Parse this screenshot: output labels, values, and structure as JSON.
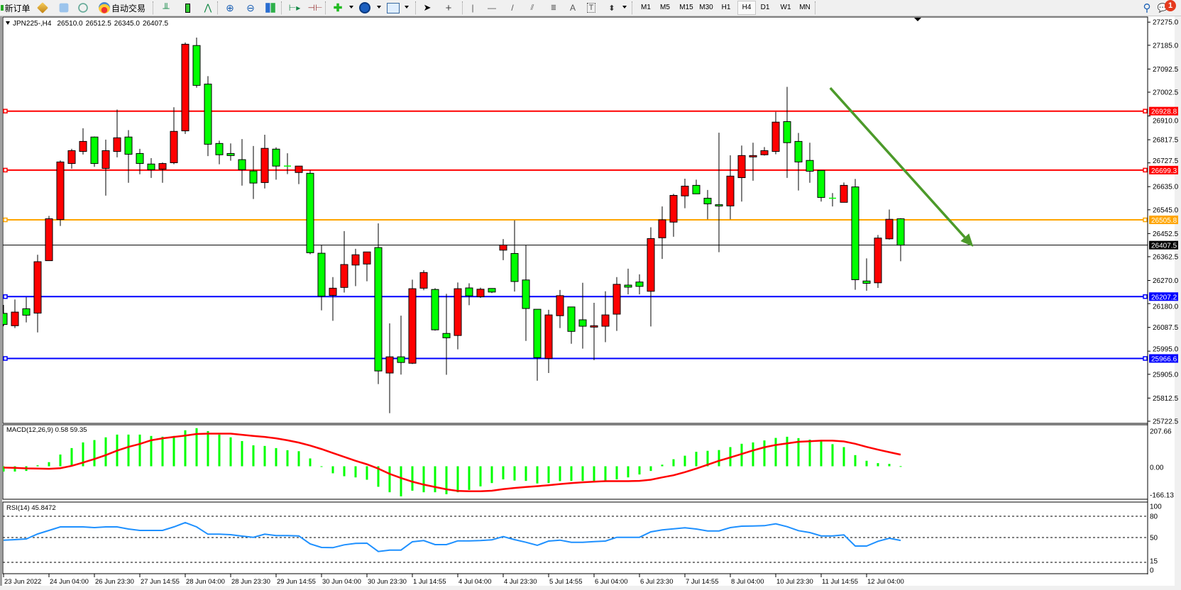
{
  "toolbar": {
    "new_order_label": "新订单",
    "auto_trading_label": "自动交易",
    "timeframes": [
      "M1",
      "M5",
      "M15",
      "M30",
      "H1",
      "H4",
      "D1",
      "W1",
      "MN"
    ],
    "active_timeframe": "H4",
    "notification_count": "1",
    "icons": [
      "new-order-icon",
      "market-watch-icon",
      "navigator-icon",
      "signals-icon",
      "auto-trading-icon",
      "bar-chart-icon",
      "candlestick-icon",
      "line-chart-icon",
      "zoom-in-icon",
      "zoom-out-icon",
      "tile-windows-icon",
      "auto-scroll-icon",
      "chart-shift-icon",
      "indicators-icon",
      "periods-icon",
      "templates-icon",
      "cursor-icon",
      "crosshair-icon",
      "vertical-line-icon",
      "horizontal-line-icon",
      "trendline-icon",
      "equidistant-channel-icon",
      "fibonacci-icon",
      "text-icon",
      "text-label-icon",
      "arrows-icon",
      "search-icon",
      "notification-icon"
    ]
  },
  "chart": {
    "symbol": "JPN225-,H4",
    "open": "26510.0",
    "high": "26512.5",
    "low": "26345.0",
    "close": "26407.5",
    "current_price": "26407.5",
    "colors": {
      "bull": "#ff0000",
      "bear": "#00ff00",
      "wick": "#000000",
      "current_line": "#000000",
      "arrow": "#4c9a2a"
    },
    "candles": [
      [
        26142,
        26175,
        26092,
        26099
      ],
      [
        26094,
        26196,
        26085,
        26147
      ],
      [
        26160,
        26205,
        26107,
        26135
      ],
      [
        26143,
        26370,
        26068,
        26343
      ],
      [
        26347,
        26521,
        26347,
        26510
      ],
      [
        26507,
        26737,
        26482,
        26731
      ],
      [
        26725,
        26782,
        26705,
        26775
      ],
      [
        26772,
        26862,
        26760,
        26811
      ],
      [
        26828,
        26830,
        26712,
        26725
      ],
      [
        26706,
        26818,
        26600,
        26775
      ],
      [
        26772,
        26935,
        26749,
        26825
      ],
      [
        26828,
        26855,
        26650,
        26761
      ],
      [
        26764,
        26782,
        26683,
        26725
      ],
      [
        26723,
        26746,
        26669,
        26701
      ],
      [
        26703,
        26729,
        26650,
        26725
      ],
      [
        26728,
        26944,
        26722,
        26850
      ],
      [
        26852,
        27196,
        26840,
        27189
      ],
      [
        27184,
        27215,
        27020,
        27029
      ],
      [
        27034,
        27065,
        26754,
        26800
      ],
      [
        26803,
        26814,
        26722,
        26759
      ],
      [
        26764,
        26803,
        26736,
        26756
      ],
      [
        26740,
        26820,
        26639,
        26701
      ],
      [
        26696,
        26793,
        26587,
        26649
      ],
      [
        26651,
        26837,
        26628,
        26784
      ],
      [
        26781,
        26788,
        26662,
        26715
      ],
      [
        26715,
        26765,
        26684,
        26715
      ],
      [
        26690,
        26715,
        26645,
        26715
      ],
      [
        26687,
        26699,
        26372,
        26378
      ],
      [
        26376,
        26409,
        26154,
        26209
      ],
      [
        26212,
        26283,
        26113,
        26240
      ],
      [
        26243,
        26462,
        26223,
        26332
      ],
      [
        26330,
        26393,
        26248,
        26370
      ],
      [
        26334,
        26381,
        26267,
        26381
      ],
      [
        26398,
        26492,
        25867,
        25918
      ],
      [
        25910,
        26103,
        25754,
        25973
      ],
      [
        25973,
        26133,
        25904,
        25951
      ],
      [
        25948,
        26273,
        25945,
        26238
      ],
      [
        26240,
        26310,
        26232,
        26301
      ],
      [
        26235,
        26240,
        26075,
        26078
      ],
      [
        26064,
        26218,
        25903,
        26047
      ],
      [
        26056,
        26262,
        26002,
        26238
      ],
      [
        26241,
        26259,
        26174,
        26210
      ],
      [
        26207,
        26242,
        26202,
        26236
      ],
      [
        26239,
        26239,
        26221,
        26225
      ],
      [
        26388,
        26431,
        26349,
        26408
      ],
      [
        26375,
        26504,
        26227,
        26266
      ],
      [
        26272,
        26408,
        26035,
        26161
      ],
      [
        26158,
        26158,
        25880,
        25970
      ],
      [
        25967,
        26156,
        25910,
        26136
      ],
      [
        26133,
        26233,
        26085,
        26211
      ],
      [
        26167,
        26167,
        26024,
        26072
      ],
      [
        26117,
        26261,
        26005,
        26092
      ],
      [
        26089,
        26183,
        25960,
        26094
      ],
      [
        26092,
        26228,
        26030,
        26136
      ],
      [
        26139,
        26283,
        26074,
        26255
      ],
      [
        26252,
        26316,
        26216,
        26244
      ],
      [
        26264,
        26294,
        26216,
        26247
      ],
      [
        26228,
        26477,
        26091,
        26433
      ],
      [
        26436,
        26558,
        26354,
        26506
      ],
      [
        26497,
        26607,
        26440,
        26601
      ],
      [
        26599,
        26666,
        26551,
        26637
      ],
      [
        26640,
        26662,
        26607,
        26607
      ],
      [
        26590,
        26622,
        26508,
        26568
      ],
      [
        26565,
        26845,
        26380,
        26560
      ],
      [
        26560,
        26757,
        26508,
        26676
      ],
      [
        26670,
        26795,
        26577,
        26756
      ],
      [
        26753,
        26806,
        26658,
        26756
      ],
      [
        26759,
        26789,
        26756,
        26775
      ],
      [
        26772,
        26926,
        26761,
        26886
      ],
      [
        26888,
        27023,
        26669,
        26806
      ],
      [
        26811,
        26844,
        26620,
        26731
      ],
      [
        26737,
        26806,
        26650,
        26695
      ],
      [
        26698,
        26698,
        26577,
        26593
      ],
      [
        26590,
        26610,
        26558,
        26590
      ],
      [
        26574,
        26651,
        26574,
        26640
      ],
      [
        26634,
        26665,
        26234,
        26273
      ],
      [
        26268,
        26356,
        26230,
        26259
      ],
      [
        26261,
        26447,
        26241,
        26435
      ],
      [
        26432,
        26546,
        26429,
        26508
      ],
      [
        26510,
        26512.5,
        26345,
        26407.5
      ]
    ],
    "hlines": [
      {
        "price": "26928.8",
        "color": "#ff0000"
      },
      {
        "price": "26699.3",
        "color": "#ff0000"
      },
      {
        "price": "26505.8",
        "color": "#ffa500"
      },
      {
        "price": "26207.2",
        "color": "#0000ff"
      },
      {
        "price": "25966.6",
        "color": "#0000ff"
      }
    ],
    "trend_arrow": {
      "from": {
        "bar": 72.8,
        "price": 27019
      },
      "to": {
        "bar": 85.4,
        "price": 26401
      }
    },
    "price_axis": [
      "27275.0",
      "27185.0",
      "27092.5",
      "27002.5",
      "26910.0",
      "26817.5",
      "26727.5",
      "26635.0",
      "26545.0",
      "26452.5",
      "26362.5",
      "26270.0",
      "26180.0",
      "26087.5",
      "25995.0",
      "25905.0",
      "25812.5",
      "25722.5"
    ],
    "time_axis": [
      "23 Jun 2022",
      "24 Jun 04:00",
      "26 Jun 23:30",
      "27 Jun 14:55",
      "28 Jun 04:00",
      "28 Jun 23:30",
      "29 Jun 14:55",
      "30 Jun 04:00",
      "30 Jun 23:30",
      "1 Jul 14:55",
      "4 Jul 04:00",
      "4 Jul 23:30",
      "5 Jul 14:55",
      "6 Jul 04:00",
      "6 Jul 23:30",
      "7 Jul 14:55",
      "8 Jul 04:00",
      "10 Jul 23:30",
      "11 Jul 14:55",
      "12 Jul 04:00"
    ]
  },
  "macd": {
    "label": "MACD(12,26,9) 0.58 59.35",
    "axis": [
      "207.66",
      "0.00",
      "-166.13"
    ],
    "histogram_color": "#00ff00",
    "signal_color": "#ff0000",
    "histogram": [
      -27,
      -27,
      -24,
      5,
      21,
      60,
      93,
      122,
      134,
      148,
      162,
      162,
      162,
      155,
      151,
      155,
      184,
      195,
      180,
      162,
      148,
      129,
      107,
      104,
      93,
      82,
      77,
      40,
      -3,
      -36,
      -51,
      -57,
      -69,
      -105,
      -133,
      -154,
      -125,
      -133,
      -133,
      -143,
      -133,
      -121,
      -103,
      -86,
      -67,
      -73,
      -75,
      -88,
      -86,
      -76,
      -75,
      -75,
      -79,
      -77,
      -67,
      -57,
      -42,
      -24,
      8,
      36,
      54,
      74,
      79,
      83,
      98,
      115,
      122,
      132,
      145,
      151,
      144,
      136,
      127,
      113,
      98,
      57,
      28,
      16,
      12,
      0.58
    ],
    "signal": [
      -7,
      -8,
      -11,
      -12,
      -13,
      -10,
      2,
      19,
      37,
      57,
      80,
      99,
      114,
      133,
      143,
      150,
      157,
      165,
      167,
      167,
      167,
      161,
      155,
      150,
      143,
      133,
      121,
      106,
      88,
      68,
      48,
      28,
      10,
      -12,
      -39,
      -60,
      -79,
      -94,
      -106,
      -118,
      -126,
      -128,
      -128,
      -125,
      -117,
      -111,
      -106,
      -102,
      -97,
      -91,
      -86,
      -82,
      -79,
      -76,
      -76,
      -76,
      -75,
      -69,
      -57,
      -46,
      -30,
      -12,
      8,
      28,
      45,
      63,
      81,
      97,
      109,
      117,
      125,
      128,
      131,
      131,
      127,
      115,
      99,
      85,
      72,
      59.35
    ]
  },
  "rsi": {
    "label": "RSI(14) 45.8472",
    "axis": [
      "100",
      "80",
      "50",
      "15",
      "0"
    ],
    "levels": [
      80,
      50,
      15
    ],
    "color": "#1e90ff",
    "values": [
      46.3,
      47,
      48,
      55,
      60,
      65,
      65,
      65,
      64,
      65,
      65,
      62,
      60,
      60,
      60,
      65,
      71,
      65,
      54.7,
      54.7,
      54,
      52,
      50.3,
      54.7,
      52.7,
      52.7,
      52.3,
      41,
      36,
      35.7,
      39.7,
      41.7,
      42,
      30.3,
      32.3,
      32.3,
      44,
      45.7,
      40,
      40,
      45.3,
      45.3,
      45.7,
      46.7,
      51.3,
      47,
      43.3,
      39,
      45,
      46.3,
      43.3,
      43.3,
      44.3,
      45,
      50.3,
      50.3,
      50.3,
      58,
      60.7,
      62.3,
      63.7,
      62,
      59.3,
      59.3,
      64,
      66,
      66.3,
      66.7,
      69.3,
      65.3,
      59.7,
      57,
      52.3,
      52.3,
      53.7,
      38,
      38,
      44.7,
      49,
      45.8472
    ]
  }
}
